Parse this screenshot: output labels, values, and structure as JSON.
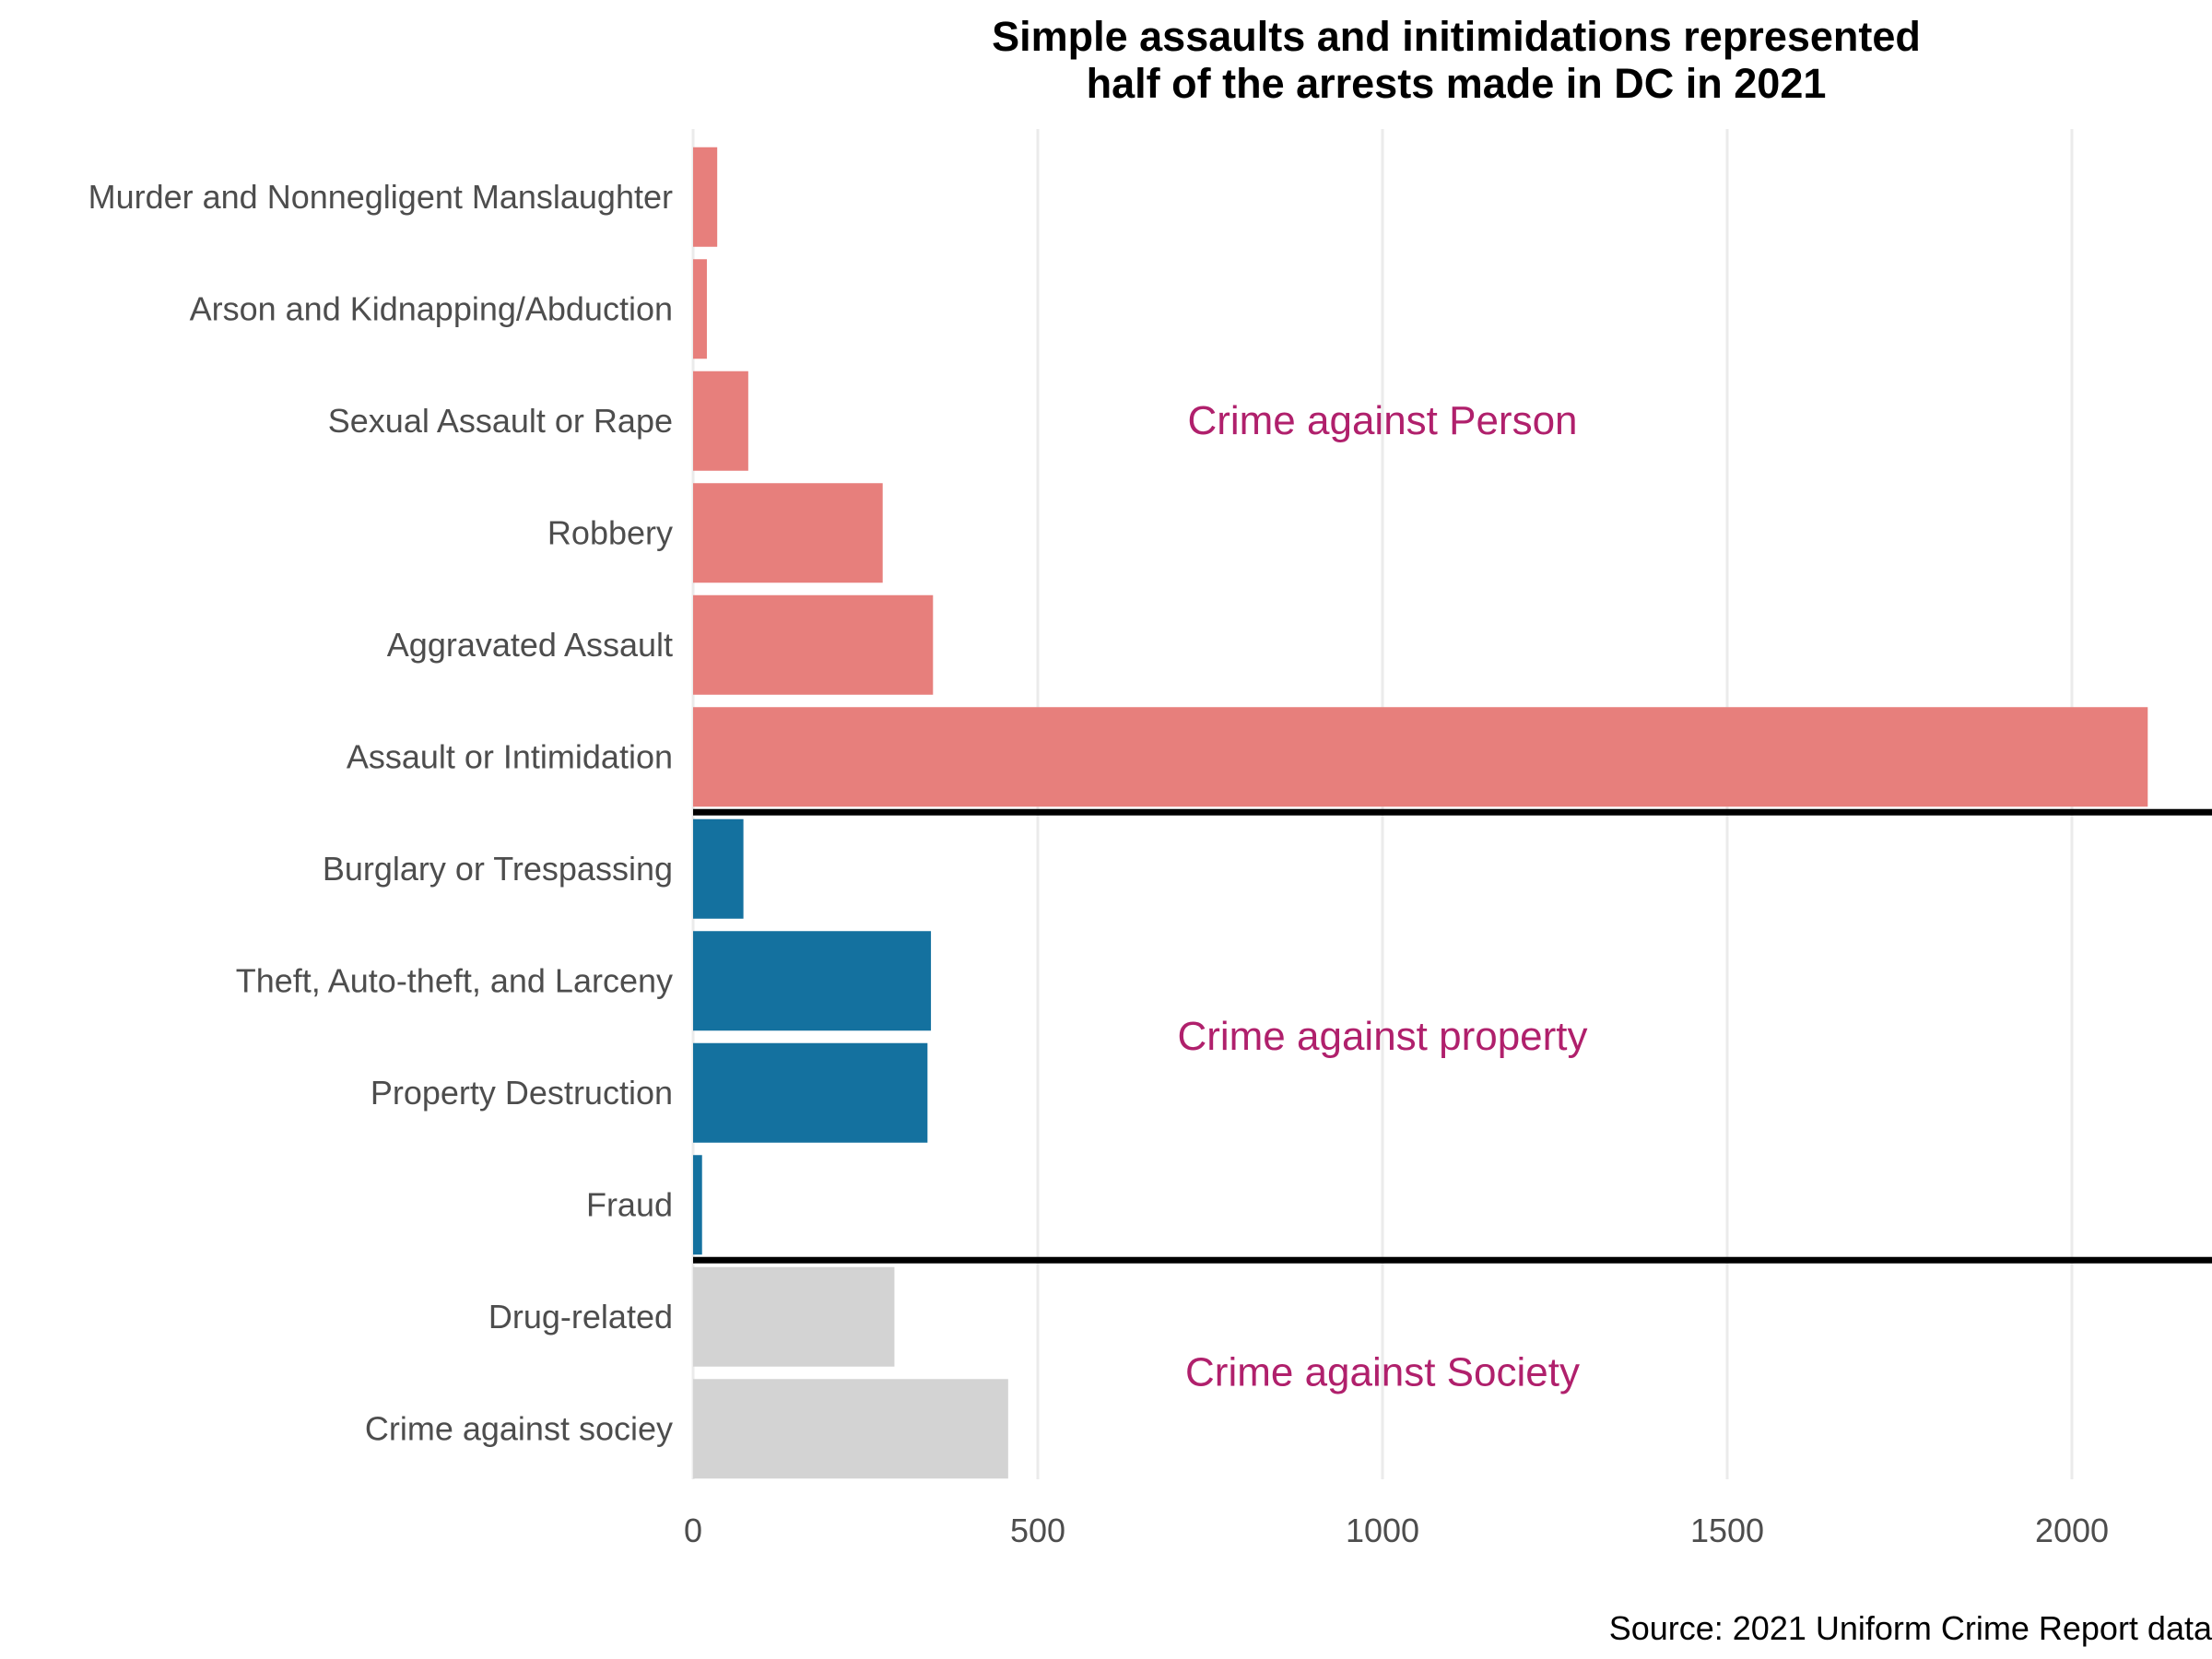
{
  "chart_data": {
    "type": "bar",
    "orientation": "horizontal",
    "title_lines": [
      "Simple assaults and initimidations represented",
      "half of the arrests made in DC in 2021"
    ],
    "caption": "Source: 2021 Uniform Crime Report data",
    "xlabel": "",
    "ylabel": "",
    "xlim": [
      0,
      2200
    ],
    "x_ticks": [
      0,
      500,
      1000,
      1500,
      2000
    ],
    "grid": "vertical major",
    "legend": "none",
    "categories": [
      "Murder and Nonnegligent Manslaughter",
      "Arson and Kidnapping/Abduction",
      "Sexual Assault or Rape",
      "Robbery",
      "Aggravated Assault",
      "Assault or Intimidation",
      "Burglary or Trespassing",
      "Theft, Auto-theft, and Larceny",
      "Property Destruction",
      "Fraud",
      "Drug-related",
      "Crime against sociey"
    ],
    "values": [
      35,
      20,
      80,
      275,
      348,
      2110,
      73,
      345,
      340,
      13,
      292,
      457
    ],
    "groups": [
      {
        "label": "Crime against Person",
        "categories": [
          0,
          1,
          2,
          3,
          4,
          5
        ],
        "color": "#E77F7C"
      },
      {
        "label": "Crime against property",
        "categories": [
          6,
          7,
          8,
          9
        ],
        "color": "#14719F"
      },
      {
        "label": "Crime against Society",
        "categories": [
          10,
          11
        ],
        "color": "#D3D3D3"
      }
    ],
    "group_label_color": "#B0206C",
    "separator_color": "#000000"
  }
}
